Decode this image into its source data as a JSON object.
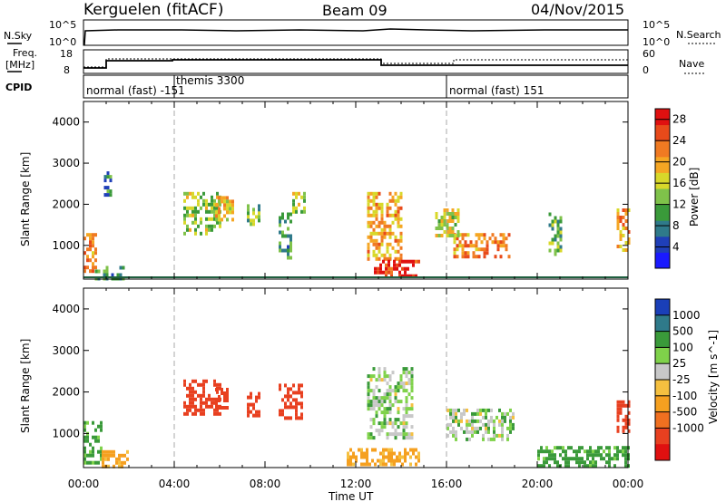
{
  "header": {
    "site": "Kerguelen (fitACF)",
    "beam": "Beam 09",
    "date": "04/Nov/2015"
  },
  "panels": {
    "nsky_label": "N.Sky",
    "nsearch_label": "N.Search",
    "freq_label_1": "Freq.",
    "freq_label_2": "[MHz]",
    "nave_label": "Nave",
    "cpid_label": "CPID",
    "left_ticks_top": [
      "10^5",
      "10^0"
    ],
    "right_ticks_top": [
      "10^5",
      "10^0"
    ],
    "freq_ticks": [
      "18",
      "8"
    ],
    "nave_ticks": [
      "60",
      "0"
    ]
  },
  "cpid_segments": [
    {
      "label": "normal (fast) -151",
      "start_h": 0
    },
    {
      "label": "themis 3300",
      "start_h": 4.0
    },
    {
      "label": "normal (fast) 151",
      "start_h": 16.0
    }
  ],
  "x_axis": {
    "label": "Time UT",
    "ticks": [
      "00:00",
      "04:00",
      "08:00",
      "12:00",
      "16:00",
      "20:00",
      "00:00"
    ]
  },
  "power_panel": {
    "ylabel": "Slant Range [km]",
    "yticks": [
      "1000",
      "2000",
      "3000",
      "4000"
    ],
    "cbar_label": "Power [dB]",
    "cbar_ticks": [
      "4",
      "8",
      "12",
      "16",
      "20",
      "24",
      "28"
    ],
    "colors": [
      "#1a1aff",
      "#1f3fb8",
      "#2f7a8a",
      "#3a9a3a",
      "#7fc24a",
      "#d8d82a",
      "#f5a623",
      "#f07a22",
      "#e84a1a",
      "#e01010"
    ]
  },
  "velocity_panel": {
    "ylabel": "Slant Range [km]",
    "yticks": [
      "1000",
      "2000",
      "3000",
      "4000"
    ],
    "cbar_label": "Velocity [m s^-1]",
    "cbar_ticks": [
      "1000",
      "500",
      "100",
      "25",
      "-25",
      "-100",
      "-500",
      "-1000"
    ],
    "colors": [
      "#1a3fb8",
      "#2f7a8a",
      "#3a9a3a",
      "#7fd24a",
      "#c8c8c8",
      "#f5c040",
      "#f5a020",
      "#f07020",
      "#e84020",
      "#e01010"
    ]
  },
  "chart_data": [
    {
      "type": "heatmap",
      "title": "Kerguelen (fitACF) Beam 09 04/Nov/2015",
      "xlabel": "Time UT",
      "ylabel": "Slant Range [km]",
      "xlim": [
        0,
        24
      ],
      "ylim": [
        180,
        4500
      ],
      "colorbar": "Power [dB]",
      "clim": [
        0,
        30
      ],
      "regions": [
        {
          "t0": 0.0,
          "t1": 0.6,
          "r0": 400,
          "r1": 1300,
          "value": 22
        },
        {
          "t0": 0.5,
          "t1": 1.8,
          "r0": 180,
          "r1": 500,
          "value": 10
        },
        {
          "t0": 0.9,
          "t1": 1.2,
          "r0": 2200,
          "r1": 2800,
          "value": 8
        },
        {
          "t0": 4.4,
          "t1": 6.0,
          "r0": 1300,
          "r1": 2300,
          "value": 14
        },
        {
          "t0": 5.8,
          "t1": 6.6,
          "r0": 1600,
          "r1": 2200,
          "value": 18
        },
        {
          "t0": 7.2,
          "t1": 7.8,
          "r0": 1500,
          "r1": 2000,
          "value": 12
        },
        {
          "t0": 8.6,
          "t1": 9.2,
          "r0": 700,
          "r1": 1800,
          "value": 10
        },
        {
          "t0": 9.2,
          "t1": 9.8,
          "r0": 1800,
          "r1": 2300,
          "value": 14
        },
        {
          "t0": 12.5,
          "t1": 14.0,
          "r0": 700,
          "r1": 2300,
          "value": 20
        },
        {
          "t0": 12.8,
          "t1": 14.8,
          "r0": 250,
          "r1": 650,
          "value": 28
        },
        {
          "t0": 16.3,
          "t1": 18.8,
          "r0": 700,
          "r1": 1300,
          "value": 22
        },
        {
          "t0": 15.5,
          "t1": 16.5,
          "r0": 1200,
          "r1": 1900,
          "value": 16
        },
        {
          "t0": 20.5,
          "t1": 21.0,
          "r0": 800,
          "r1": 1800,
          "value": 12
        },
        {
          "t0": 23.5,
          "t1": 24.0,
          "r0": 900,
          "r1": 1900,
          "value": 20
        }
      ]
    },
    {
      "type": "heatmap",
      "title": "Kerguelen (fitACF) Beam 09 04/Nov/2015",
      "xlabel": "Time UT",
      "ylabel": "Slant Range [km]",
      "xlim": [
        0,
        24
      ],
      "ylim": [
        180,
        4500
      ],
      "colorbar": "Velocity [m s^-1]",
      "clim": [
        -1000,
        1000
      ],
      "regions": [
        {
          "t0": 0.0,
          "t1": 0.8,
          "r0": 300,
          "r1": 1300,
          "value": 100
        },
        {
          "t0": 0.8,
          "t1": 2.0,
          "r0": 200,
          "r1": 600,
          "value": -100
        },
        {
          "t0": 4.4,
          "t1": 6.0,
          "r0": 1500,
          "r1": 2300,
          "value": -500
        },
        {
          "t0": 5.8,
          "t1": 6.4,
          "r0": 1600,
          "r1": 2100,
          "value": -500
        },
        {
          "t0": 7.2,
          "t1": 7.8,
          "r0": 1400,
          "r1": 2000,
          "value": -500
        },
        {
          "t0": 8.6,
          "t1": 9.6,
          "r0": 1400,
          "r1": 2200,
          "value": -500
        },
        {
          "t0": 12.5,
          "t1": 14.5,
          "r0": 900,
          "r1": 2600,
          "value": 25
        },
        {
          "t0": 11.6,
          "t1": 14.8,
          "r0": 250,
          "r1": 650,
          "value": -100
        },
        {
          "t0": 16.0,
          "t1": 19.0,
          "r0": 900,
          "r1": 1600,
          "value": 25
        },
        {
          "t0": 20.0,
          "t1": 24.0,
          "r0": 200,
          "r1": 700,
          "value": 100
        },
        {
          "t0": 23.5,
          "t1": 24.0,
          "r0": 1100,
          "r1": 1800,
          "value": -500
        }
      ]
    }
  ]
}
